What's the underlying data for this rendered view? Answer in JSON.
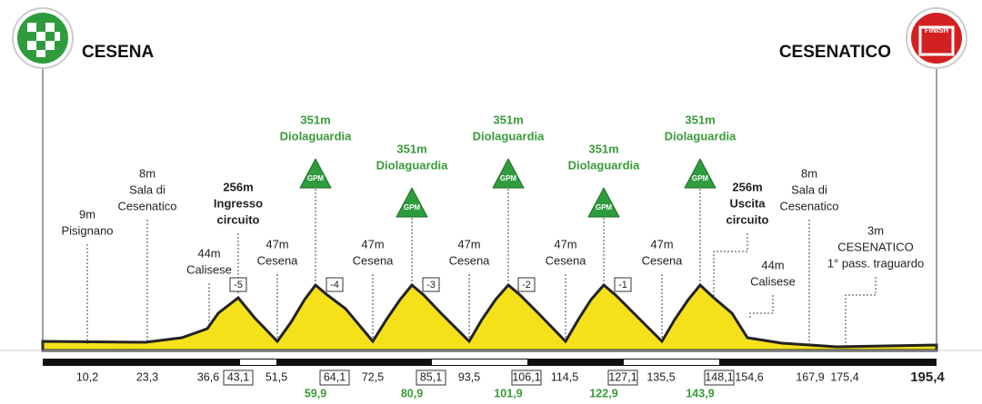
{
  "start": {
    "name": "CESENA"
  },
  "finish": {
    "name": "CESENATICO",
    "badge": "FINISH"
  },
  "waypoints": [
    {
      "lines": [
        "9m",
        "Pisignano"
      ]
    },
    {
      "lines": [
        "8m",
        "Sala di",
        "Cesenatico"
      ]
    },
    {
      "lines": [
        "44m",
        "Calisese"
      ]
    },
    {
      "lines": [
        "256m",
        "Ingresso",
        "circuito"
      ]
    },
    {
      "lines": [
        "47m",
        "Cesena"
      ]
    },
    {
      "lines": [
        "351m",
        "Diolaguardia"
      ],
      "badge": "GPM"
    },
    {
      "lines": [
        "47m",
        "Cesena"
      ]
    },
    {
      "lines": [
        "351m",
        "Diolaguardia"
      ],
      "badge": "GPM"
    },
    {
      "lines": [
        "47m",
        "Cesena"
      ]
    },
    {
      "lines": [
        "351m",
        "Diolaguardia"
      ],
      "badge": "GPM"
    },
    {
      "lines": [
        "47m",
        "Cesena"
      ]
    },
    {
      "lines": [
        "351m",
        "Diolaguardia"
      ],
      "badge": "GPM"
    },
    {
      "lines": [
        "47m",
        "Cesena"
      ]
    },
    {
      "lines": [
        "351m",
        "Diolaguardia"
      ],
      "badge": "GPM"
    },
    {
      "lines": [
        "256m",
        "Uscita",
        "circuito"
      ]
    },
    {
      "lines": [
        "44m",
        "Calisese"
      ]
    },
    {
      "lines": [
        "8m",
        "Sala di",
        "Cesenatico"
      ]
    },
    {
      "lines": [
        "3m",
        "CESENATICO",
        "1° pass. traguardo"
      ]
    }
  ],
  "laps": [
    "-5",
    "-4",
    "-3",
    "-2",
    "-1"
  ],
  "km_labels": [
    "10,2",
    "23,3",
    "36,6",
    "43,1",
    "51,5",
    "64,1",
    "72,5",
    "85,1",
    "93,5",
    "106,1",
    "114,5",
    "127,1",
    "135,5",
    "148,1",
    "154,6",
    "167,9",
    "175,4",
    "195,4"
  ],
  "gpm_km_labels": [
    "59,9",
    "80,9",
    "101,9",
    "122,9",
    "143,9"
  ]
}
